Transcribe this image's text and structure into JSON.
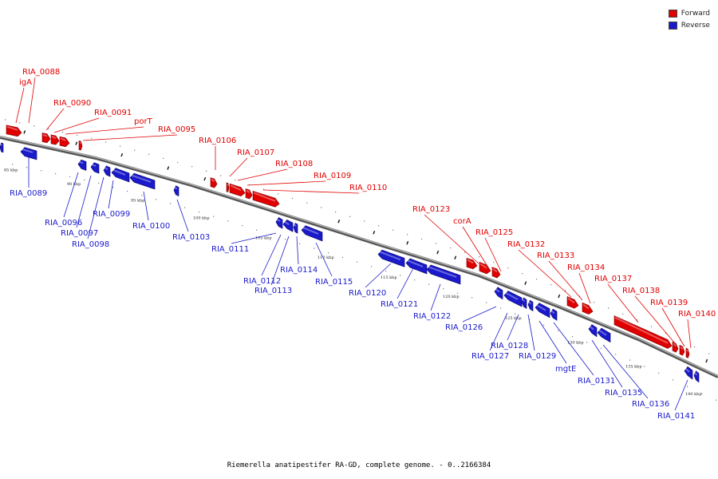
{
  "legend": {
    "forward": {
      "label": "Forward",
      "color": "#e00000"
    },
    "reverse": {
      "label": "Reverse",
      "color": "#1a1acc"
    }
  },
  "caption": "Riemerella anatipestifer RA-GD, complete genome. - 0..2166384",
  "scale_ticks": [
    "85 kbp",
    "90 kbp",
    "95 kbp",
    "100 kbp",
    "105 kbp",
    "110 kbp",
    "115 kbp",
    "120 kbp",
    "125 kbp",
    "130 kbp",
    "135 kbp",
    "140 kbp"
  ],
  "forward_genes": [
    "igA",
    "RIA_0088",
    "RIA_0090",
    "RIA_0091",
    "porT",
    "RIA_0095",
    "RIA_0106",
    "RIA_0107",
    "RIA_0108",
    "RIA_0109",
    "RIA_0110",
    "RIA_0123",
    "corA",
    "RIA_0125",
    "RIA_0132",
    "RIA_0133",
    "RIA_0134",
    "RIA_0137",
    "RIA_0138",
    "RIA_0139",
    "RIA_0140"
  ],
  "reverse_genes": [
    "RIA_0089",
    "RIA_0096",
    "RIA_0097",
    "RIA_0098",
    "RIA_0099",
    "RIA_0100",
    "RIA_0103",
    "RIA_0111",
    "RIA_0112",
    "RIA_0113",
    "RIA_0114",
    "RIA_0115",
    "RIA_0120",
    "RIA_0121",
    "RIA_0122",
    "RIA_0126",
    "RIA_0127",
    "RIA_0128",
    "RIA_0129",
    "mgtE",
    "RIA_0131",
    "RIA_0135",
    "RIA_0136",
    "RIA_0141"
  ]
}
